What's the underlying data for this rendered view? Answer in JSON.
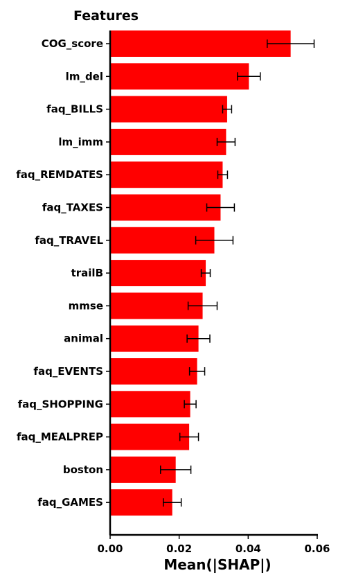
{
  "chart_data": {
    "type": "bar",
    "orientation": "horizontal",
    "title": "Features",
    "xlabel": "Mean(|SHAP|)",
    "ylabel": "",
    "xlim": [
      0.0,
      0.06
    ],
    "xticks": [
      "0.00",
      "0.02",
      "0.04",
      "0.06"
    ],
    "bar_color": "#ff0000",
    "grid": false,
    "categories": [
      "COG_score",
      "lm_del",
      "faq_BILLS",
      "lm_imm",
      "faq_REMDATES",
      "faq_TAXES",
      "faq_TRAVEL",
      "trailB",
      "mmse",
      "animal",
      "faq_EVENTS",
      "faq_SHOPPING",
      "faq_MEALPREP",
      "boston",
      "faq_GAMES"
    ],
    "values": [
      0.0523,
      0.0402,
      0.0339,
      0.0336,
      0.0326,
      0.032,
      0.0302,
      0.0277,
      0.0268,
      0.0256,
      0.0252,
      0.0232,
      0.0229,
      0.019,
      0.018
    ],
    "error": [
      0.0068,
      0.0033,
      0.0013,
      0.0026,
      0.0014,
      0.004,
      0.0054,
      0.0013,
      0.0042,
      0.0033,
      0.0022,
      0.0017,
      0.0027,
      0.0044,
      0.0026
    ]
  }
}
